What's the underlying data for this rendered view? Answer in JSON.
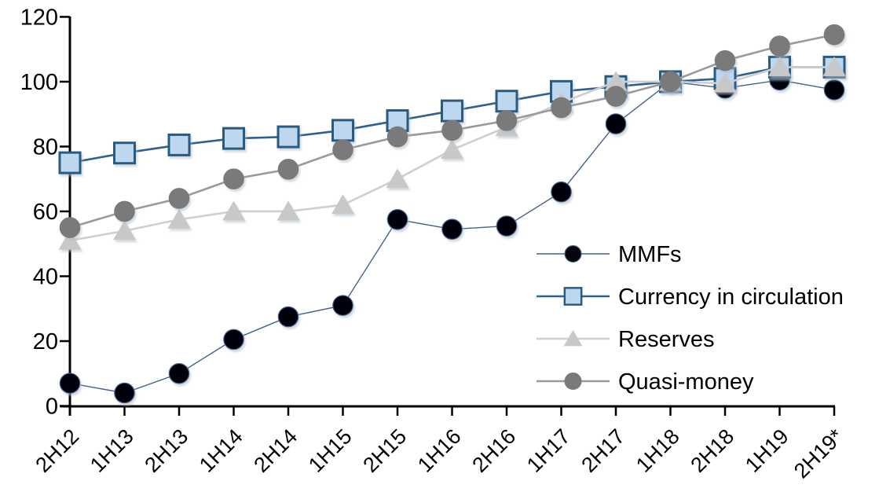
{
  "chart_data": {
    "type": "line",
    "title": "",
    "xlabel": "",
    "ylabel": "",
    "categories": [
      "2H12",
      "1H13",
      "2H13",
      "1H14",
      "2H14",
      "1H15",
      "2H15",
      "1H16",
      "2H16",
      "1H17",
      "2H17",
      "1H18",
      "2H18",
      "1H19",
      "2H19*"
    ],
    "yticks": [
      0,
      20,
      40,
      60,
      80,
      100,
      120
    ],
    "ylim": [
      0,
      120
    ],
    "grid": false,
    "legend_position": "center-right-inside",
    "series": [
      {
        "name": "MMFs",
        "marker": "circle",
        "marker_fill": "#06060c",
        "marker_edge": "#44618c",
        "line_color": "#44618c",
        "line_width": 1.4,
        "values": [
          7,
          4,
          10,
          20.5,
          27.5,
          31,
          57.5,
          54.5,
          55.5,
          66,
          87,
          100,
          98,
          100.5,
          97.5
        ]
      },
      {
        "name": "Currency in circulation",
        "marker": "square",
        "marker_fill": "#bdd7ee",
        "marker_edge": "#2b5a80",
        "line_color": "#2e6091",
        "line_width": 2.6,
        "values": [
          75,
          78,
          80.5,
          82.5,
          83,
          85,
          88,
          91,
          94,
          97,
          98.5,
          100,
          101,
          104.5,
          104.5
        ]
      },
      {
        "name": "Reserves",
        "marker": "triangle",
        "marker_fill": "#c8c8c8",
        "marker_edge": "#c8c8c8",
        "line_color": "#cfcfcf",
        "line_width": 2.6,
        "values": [
          51,
          54,
          57.5,
          60,
          60,
          62,
          70,
          79,
          86,
          93.5,
          100,
          100,
          99.5,
          104.5,
          104.5
        ]
      },
      {
        "name": "Quasi-money",
        "marker": "circle",
        "marker_fill": "#7a7a7a",
        "marker_edge": "#7a7a7a",
        "line_color": "#9a9a9a",
        "line_width": 2.6,
        "values": [
          55,
          60,
          64,
          70,
          73,
          79,
          83,
          85,
          88,
          92,
          95.5,
          100,
          106.5,
          111,
          114.5
        ]
      }
    ],
    "colors": {
      "axis": "#000000",
      "text": "#000000",
      "background": "#ffffff",
      "marker_shadow": "#aebdc9"
    }
  }
}
